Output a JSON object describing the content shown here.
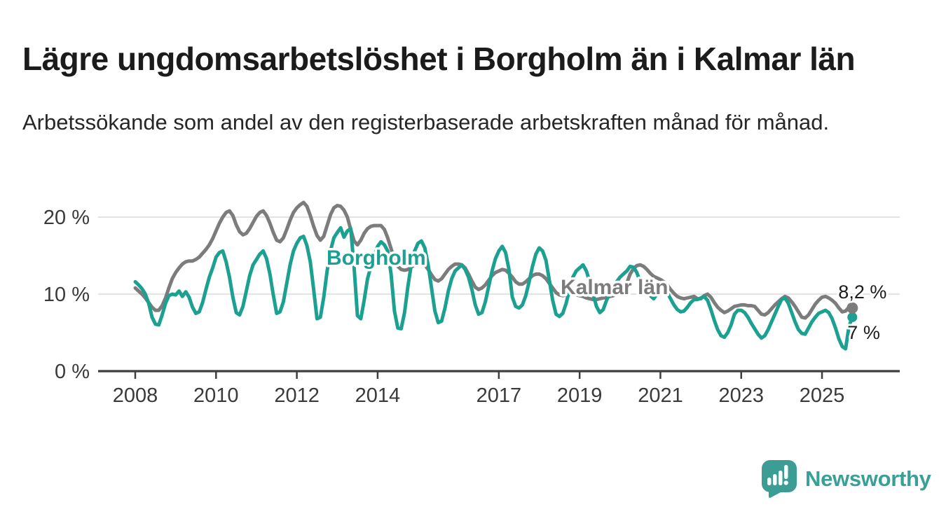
{
  "header": {
    "title": "Lägre ungdomsarbetslöshet i Borgholm än i Kalmar län",
    "subtitle": "Arbetssökande som andel av den registerbaserade arbetskraften månad för månad."
  },
  "chart_data": {
    "type": "line",
    "frequency": "monthly",
    "unit": "%",
    "ylim": [
      0,
      23
    ],
    "grid": "horizontal",
    "start_year": 2008,
    "y_ticks": [
      {
        "label": "20 %",
        "value": 20
      },
      {
        "label": "10 %",
        "value": 10
      },
      {
        "label": "0 %",
        "value": 0
      }
    ],
    "x_ticks": [
      2008,
      2010,
      2012,
      2014,
      2017,
      2019,
      2021,
      2023,
      2025
    ],
    "series": [
      {
        "name": "Borgholm",
        "color": "#1CA091",
        "end_label": "7 %",
        "end_value": 7.0,
        "values": [
          11.6,
          11.2,
          10.7,
          10.0,
          8.8,
          7.0,
          6.1,
          6.0,
          7.3,
          8.8,
          9.8,
          10.0,
          9.9,
          10.4,
          9.7,
          10.3,
          9.6,
          8.3,
          7.5,
          7.7,
          8.9,
          10.6,
          12.2,
          13.4,
          14.8,
          15.4,
          15.6,
          14.2,
          12.2,
          9.6,
          7.6,
          7.3,
          8.4,
          10.4,
          12.4,
          13.8,
          14.5,
          15.2,
          15.6,
          14.6,
          12.6,
          9.9,
          7.5,
          7.7,
          9.0,
          11.4,
          13.8,
          15.6,
          16.6,
          17.3,
          17.5,
          16.3,
          14.2,
          10.6,
          6.8,
          7.0,
          9.6,
          13.0,
          15.6,
          17.3,
          18.0,
          18.6,
          17.4,
          18.2,
          18.5,
          13.5,
          7.2,
          6.8,
          9.2,
          12.0,
          13.6,
          15.0,
          16.2,
          16.8,
          16.4,
          15.6,
          12.6,
          7.8,
          5.6,
          5.5,
          7.6,
          11.0,
          13.8,
          15.6,
          16.6,
          16.9,
          16.0,
          13.8,
          10.8,
          7.8,
          6.3,
          6.5,
          8.2,
          10.4,
          12.0,
          13.0,
          13.4,
          13.8,
          13.2,
          12.2,
          10.6,
          8.6,
          7.4,
          7.6,
          9.0,
          11.0,
          13.0,
          14.6,
          15.6,
          16.2,
          15.4,
          13.2,
          9.6,
          8.4,
          8.2,
          8.6,
          9.8,
          11.6,
          13.6,
          15.2,
          16.0,
          15.6,
          14.4,
          11.8,
          9.2,
          7.4,
          7.1,
          7.5,
          8.8,
          10.6,
          12.2,
          13.0,
          13.4,
          13.8,
          13.0,
          11.6,
          10.0,
          8.4,
          7.6,
          8.0,
          9.2,
          10.2,
          10.8,
          11.6,
          12.2,
          12.6,
          13.0,
          13.6,
          13.5,
          12.8,
          11.6,
          11.0,
          10.4,
          9.8,
          9.4,
          10.0,
          10.4,
          10.6,
          10.2,
          9.4,
          8.6,
          8.0,
          7.7,
          7.8,
          8.3,
          8.9,
          9.3,
          9.3,
          9.5,
          9.7,
          9.2,
          8.0,
          6.6,
          5.4,
          4.6,
          4.4,
          5.0,
          6.0,
          7.4,
          7.9,
          7.9,
          7.6,
          7.0,
          6.2,
          5.5,
          4.8,
          4.3,
          4.6,
          5.4,
          6.4,
          7.4,
          8.4,
          9.3,
          9.5,
          8.8,
          7.6,
          6.4,
          5.4,
          4.9,
          4.8,
          5.6,
          6.4,
          7.0,
          7.5,
          7.7,
          7.9,
          7.6,
          6.8,
          5.6,
          4.2,
          3.2,
          2.9,
          5.8,
          7.0
        ]
      },
      {
        "name": "Kalmar län",
        "color": "#7C7C7C",
        "end_label": "8,2 %",
        "end_value": 8.2,
        "values": [
          10.8,
          10.4,
          10.0,
          9.5,
          8.9,
          8.3,
          7.9,
          7.9,
          8.5,
          9.5,
          10.8,
          12.0,
          12.8,
          13.4,
          13.9,
          14.2,
          14.3,
          14.3,
          14.5,
          14.8,
          15.3,
          15.8,
          16.4,
          17.2,
          18.2,
          19.2,
          20.0,
          20.6,
          20.8,
          20.2,
          19.0,
          18.1,
          17.7,
          17.9,
          18.5,
          19.3,
          20.1,
          20.6,
          20.8,
          20.2,
          19.2,
          18.0,
          17.0,
          16.8,
          17.3,
          18.4,
          19.6,
          20.6,
          21.2,
          21.6,
          21.9,
          21.4,
          20.2,
          18.8,
          17.6,
          17.0,
          17.5,
          18.9,
          20.3,
          21.2,
          21.5,
          21.4,
          20.9,
          20.0,
          18.4,
          16.9,
          16.4,
          17.0,
          17.9,
          18.5,
          18.8,
          18.9,
          18.9,
          18.9,
          18.4,
          17.3,
          15.9,
          14.5,
          13.6,
          13.2,
          13.1,
          13.2,
          13.5,
          13.8,
          14.0,
          14.1,
          13.8,
          13.2,
          12.5,
          11.9,
          11.7,
          12.0,
          12.6,
          13.2,
          13.6,
          13.9,
          13.9,
          13.8,
          13.4,
          12.6,
          11.7,
          10.9,
          10.6,
          10.8,
          11.2,
          11.8,
          12.4,
          12.8,
          13.0,
          13.2,
          13.1,
          12.7,
          12.2,
          11.6,
          11.3,
          11.3,
          11.6,
          12.0,
          12.4,
          12.6,
          12.6,
          12.4,
          12.0,
          11.4,
          10.8,
          10.2,
          9.9,
          9.8,
          9.9,
          10.0,
          10.0,
          9.9,
          9.8,
          9.7,
          9.5,
          9.4,
          9.3,
          9.3,
          9.4,
          9.5,
          9.6,
          9.7,
          9.8,
          10.0,
          10.3,
          10.6,
          11.4,
          12.6,
          13.3,
          13.7,
          13.8,
          13.6,
          13.2,
          12.7,
          12.3,
          12.1,
          11.9,
          11.6,
          11.2,
          10.6,
          10.1,
          9.7,
          9.5,
          9.4,
          9.5,
          9.6,
          9.7,
          9.4,
          9.4,
          9.8,
          10.0,
          9.6,
          8.9,
          8.3,
          7.9,
          7.6,
          7.8,
          8.1,
          8.4,
          8.5,
          8.6,
          8.6,
          8.5,
          8.5,
          8.4,
          7.9,
          7.4,
          7.3,
          7.6,
          8.1,
          8.6,
          9.0,
          9.4,
          9.7,
          9.5,
          9.0,
          8.4,
          7.7,
          7.0,
          6.9,
          7.3,
          8.0,
          8.7,
          9.2,
          9.6,
          9.7,
          9.5,
          9.2,
          8.8,
          8.2,
          7.7,
          7.8,
          8.3,
          8.2
        ]
      }
    ]
  },
  "footer": {
    "brand": "Newsworthy"
  }
}
